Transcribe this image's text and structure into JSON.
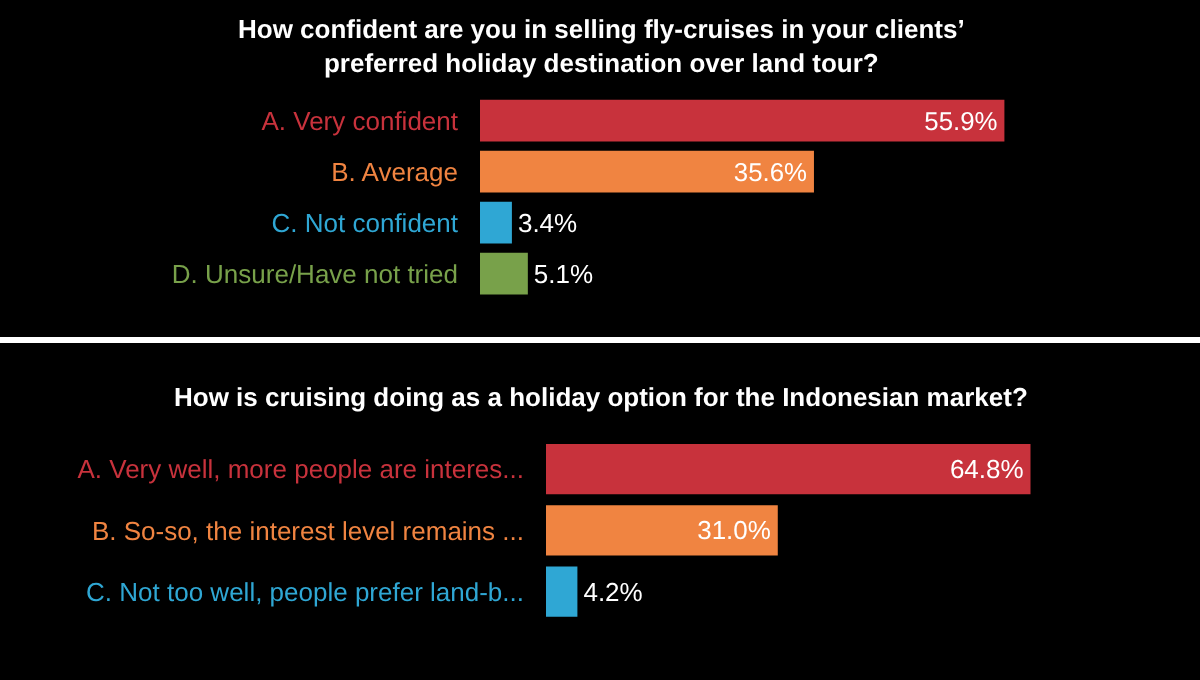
{
  "chart_data": [
    {
      "type": "bar",
      "orientation": "horizontal",
      "title": "How confident are you in selling fly-cruises in your clients’ preferred holiday destination over land tour?",
      "categories": [
        "A. Very confident",
        "B. Average",
        "C. Not confident",
        "D. Unsure/Have not tried"
      ],
      "values": [
        55.9,
        35.6,
        3.4,
        5.1
      ],
      "colors": [
        "#c8323c",
        "#f08441",
        "#2fa7d4",
        "#78a14a"
      ],
      "value_labels": [
        "55.9%",
        "35.6%",
        "3.4%",
        "5.1%"
      ]
    },
    {
      "type": "bar",
      "orientation": "horizontal",
      "title": "How is cruising doing as a holiday option for the Indonesian market?",
      "categories": [
        "A. Very well, more people are interes...",
        "B. So-so, the interest level remains ...",
        "C. Not too well, people prefer land-b..."
      ],
      "values": [
        64.8,
        31.0,
        4.2
      ],
      "colors": [
        "#c8323c",
        "#f08441",
        "#2fa7d4"
      ],
      "value_labels": [
        "64.8%",
        "31.0%",
        "4.2%"
      ]
    }
  ]
}
